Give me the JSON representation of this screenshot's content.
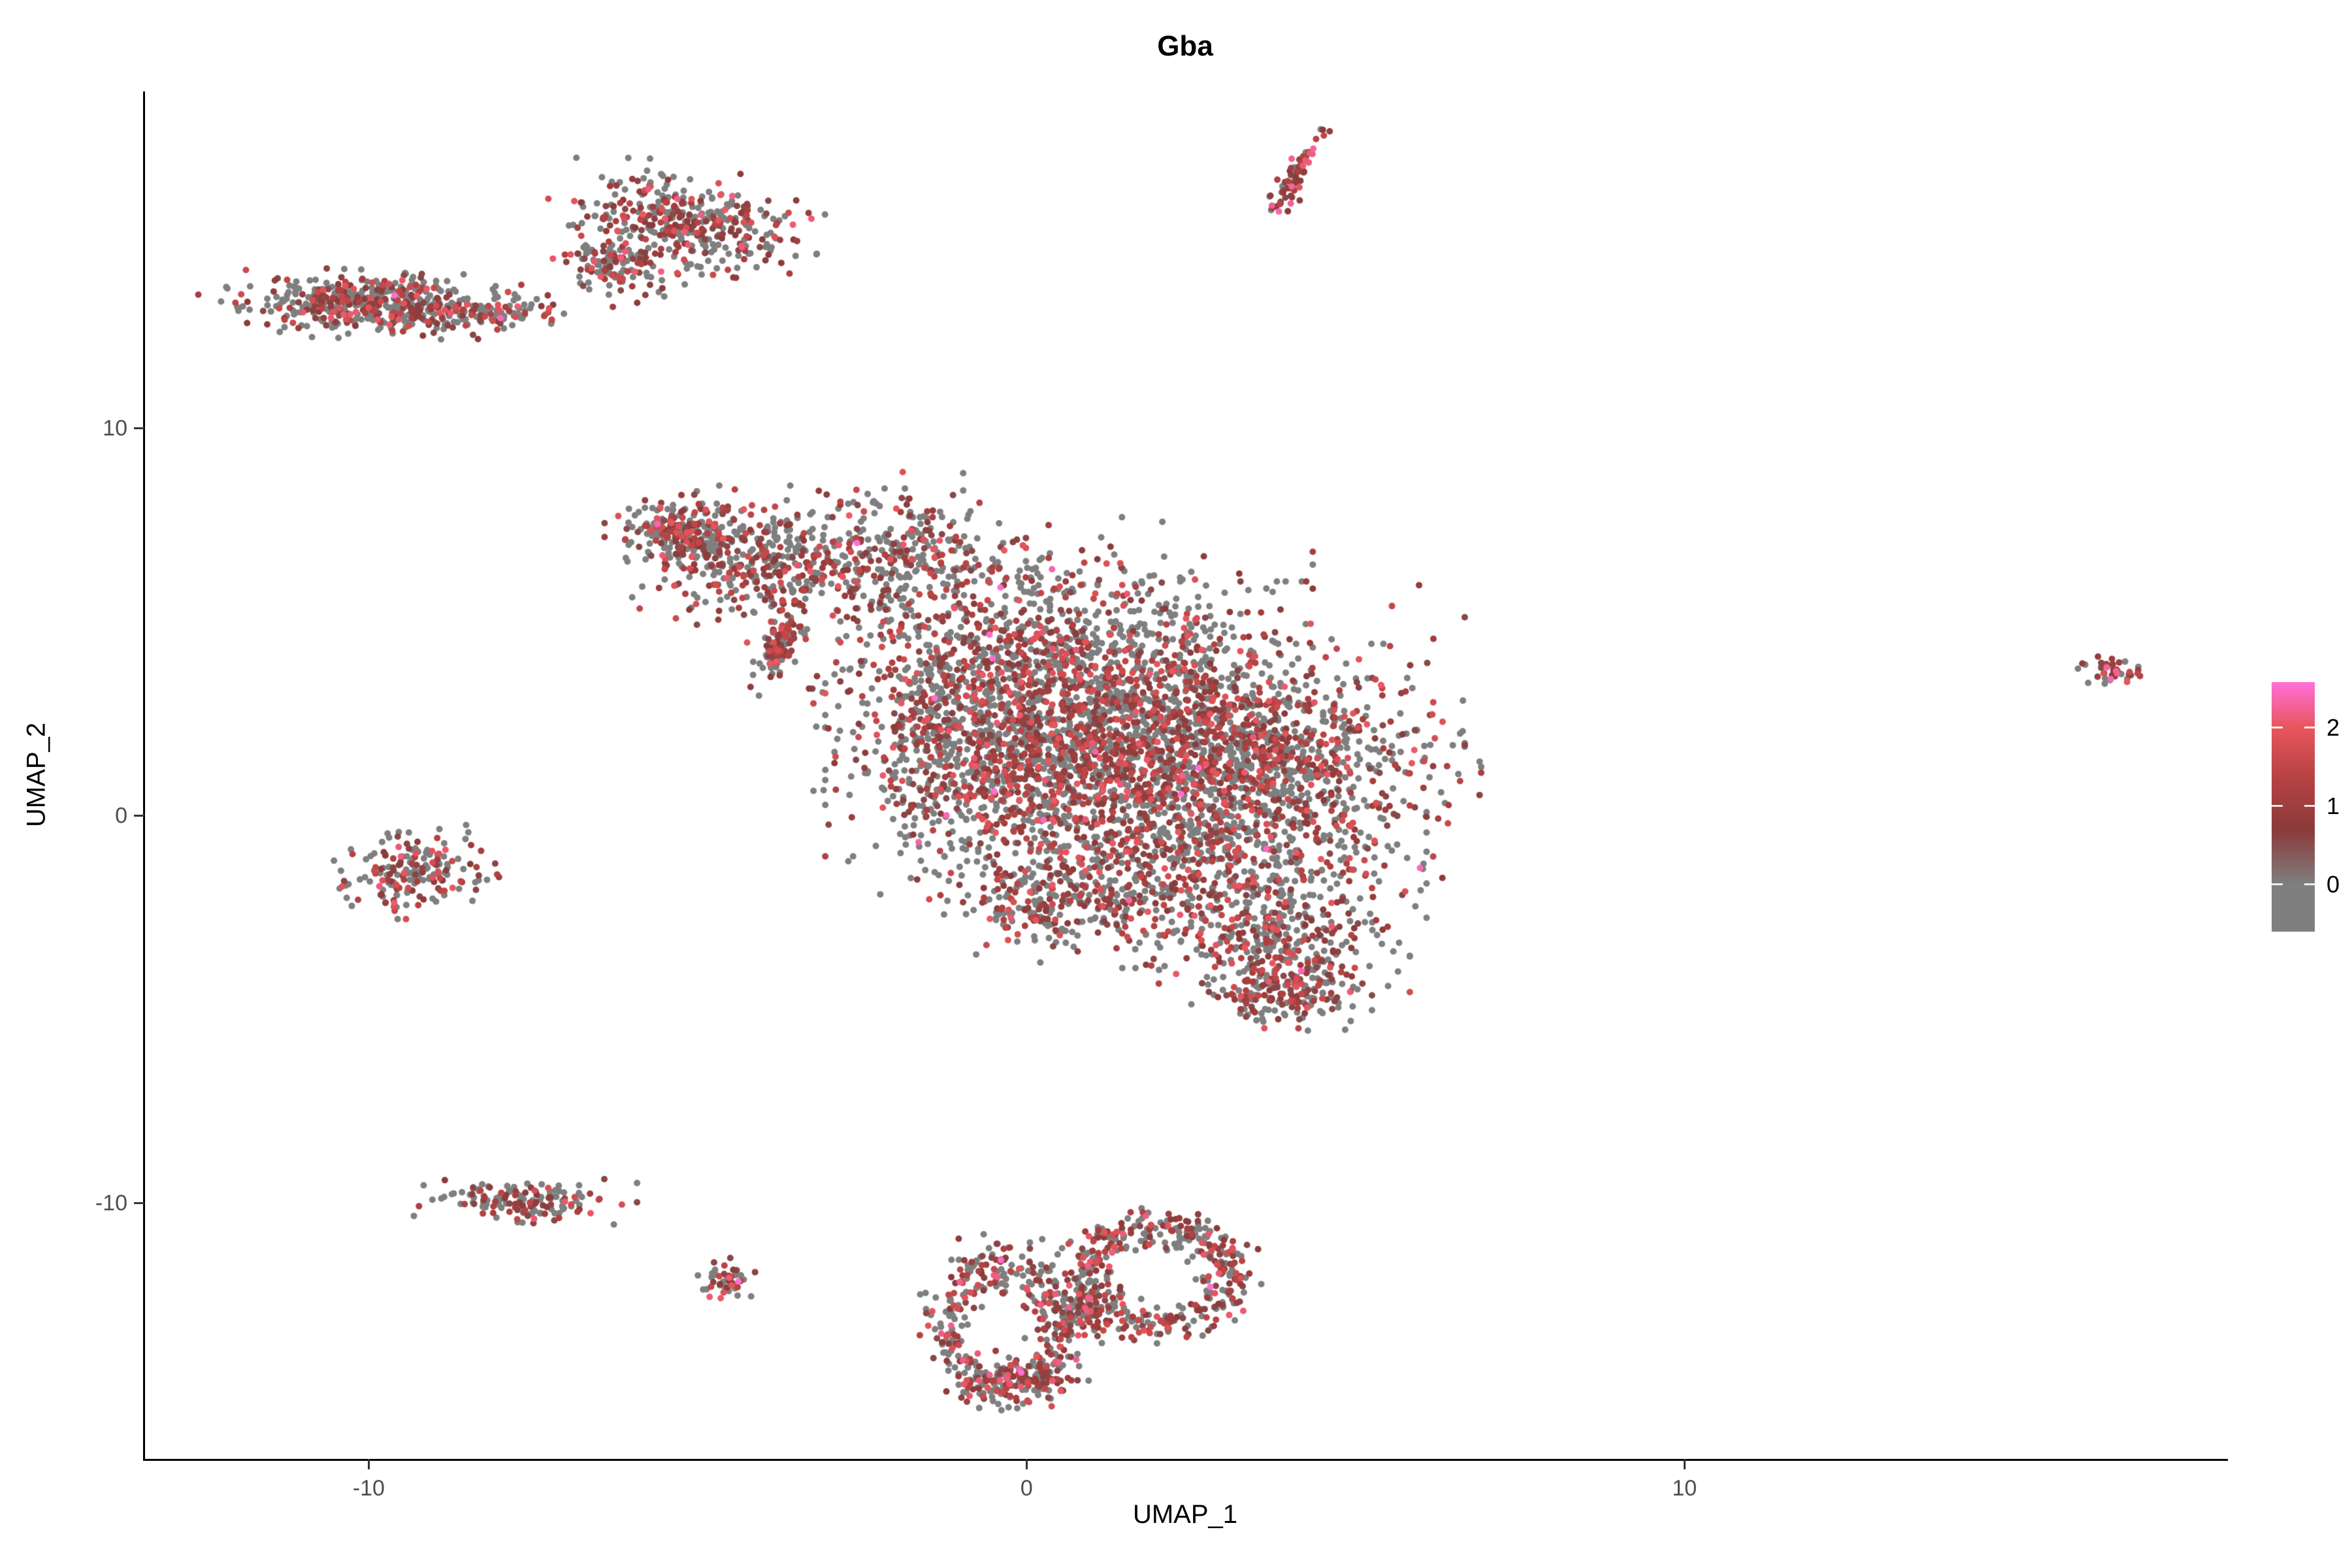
{
  "title": "Gba",
  "axes": {
    "x": {
      "label": "UMAP_1",
      "ticks": [
        {
          "value": -10,
          "label": "-10"
        },
        {
          "value": 0,
          "label": "0"
        },
        {
          "value": 10,
          "label": "10"
        }
      ]
    },
    "y": {
      "label": "UMAP_2",
      "ticks": [
        {
          "value": 10,
          "label": "10"
        },
        {
          "value": 0,
          "label": "0"
        },
        {
          "value": -10,
          "label": "-10"
        }
      ]
    }
  },
  "legend": {
    "range": [
      -0.6,
      2.58
    ],
    "ticks": [
      {
        "value": 2,
        "label": "2"
      },
      {
        "value": 1,
        "label": "1"
      },
      {
        "value": 0,
        "label": "0"
      }
    ]
  },
  "chart_data": {
    "type": "scatter",
    "title": "Gba",
    "xlabel": "UMAP_1",
    "ylabel": "UMAP_2",
    "xlim": [
      -13.41,
      18.23
    ],
    "ylim": [
      -16.6,
      18.7
    ],
    "grid": false,
    "legend_position": "right",
    "color_encoding": "Gba expression level (grey = 0, dark red = 1, red/pink = 2+)",
    "point_radius_px": 5,
    "colormap": [
      {
        "v": 0.0,
        "c": "#7F7F7F"
      },
      {
        "v": 0.7,
        "c": "#8B3A3A"
      },
      {
        "v": 1.4,
        "c": "#B94343"
      },
      {
        "v": 2.0,
        "c": "#E8565E"
      },
      {
        "v": 2.6,
        "c": "#FF70D8"
      }
    ],
    "clusters": [
      {
        "name": "topleft-band",
        "type": "gauss",
        "cx": -9.9,
        "cy": 13.2,
        "sx": 1.0,
        "sy": 0.33,
        "rot": -3,
        "n": 520,
        "expr_frac": 0.38,
        "expr_scale": 1.0
      },
      {
        "name": "topleft-band-tail",
        "type": "gauss",
        "cx": -8.2,
        "cy": 12.95,
        "sx": 0.45,
        "sy": 0.18,
        "rot": 0,
        "n": 60,
        "expr_frac": 0.3,
        "expr_scale": 1.0
      },
      {
        "name": "top-blob",
        "type": "gauss",
        "cx": -5.2,
        "cy": 15.3,
        "sx": 0.8,
        "sy": 0.55,
        "rot": -20,
        "n": 380,
        "expr_frac": 0.45,
        "expr_scale": 1.1
      },
      {
        "name": "top-blob-tail",
        "type": "gauss",
        "cx": -6.3,
        "cy": 14.2,
        "sx": 0.28,
        "sy": 0.4,
        "rot": 30,
        "n": 120,
        "expr_frac": 0.45,
        "expr_scale": 1.1
      },
      {
        "name": "top-streak",
        "type": "gauss",
        "cx": 4.1,
        "cy": 16.55,
        "sx": 0.09,
        "sy": 0.55,
        "rot": -17,
        "n": 70,
        "expr_frac": 0.75,
        "expr_scale": 1.2
      },
      {
        "name": "far-right",
        "type": "gauss",
        "cx": 16.5,
        "cy": 3.7,
        "sx": 0.22,
        "sy": 0.18,
        "rot": 0,
        "n": 42,
        "expr_frac": 0.75,
        "expr_scale": 1.3
      },
      {
        "name": "left-small",
        "type": "gauss",
        "cx": -9.3,
        "cy": -1.45,
        "sx": 0.5,
        "sy": 0.45,
        "rot": 0,
        "n": 190,
        "expr_frac": 0.4,
        "expr_scale": 1.1
      },
      {
        "name": "left-low-band",
        "type": "gauss",
        "cx": -7.6,
        "cy": -9.95,
        "sx": 0.62,
        "sy": 0.25,
        "rot": -5,
        "n": 150,
        "expr_frac": 0.45,
        "expr_scale": 1.0
      },
      {
        "name": "small-dot",
        "type": "gauss",
        "cx": -4.6,
        "cy": -12.0,
        "sx": 0.22,
        "sy": 0.25,
        "rot": 0,
        "n": 48,
        "expr_frac": 0.55,
        "expr_scale": 1.1
      },
      {
        "name": "main-arm-tip",
        "type": "gauss",
        "cx": -5.2,
        "cy": 7.3,
        "sx": 0.45,
        "sy": 0.4,
        "rot": 0,
        "n": 240,
        "expr_frac": 0.45,
        "expr_scale": 1.0
      },
      {
        "name": "main-arm",
        "type": "gauss",
        "cx": -3.9,
        "cy": 6.5,
        "sx": 0.8,
        "sy": 0.75,
        "rot": 0,
        "n": 380,
        "expr_frac": 0.45,
        "expr_scale": 1.0
      },
      {
        "name": "main-arm-upper",
        "type": "gauss",
        "cx": -1.9,
        "cy": 6.8,
        "sx": 0.7,
        "sy": 0.9,
        "rot": 0,
        "n": 260,
        "expr_frac": 0.4,
        "expr_scale": 1.0
      },
      {
        "name": "main-streak",
        "type": "gauss",
        "cx": -3.75,
        "cy": 4.35,
        "sx": 0.12,
        "sy": 0.5,
        "rot": -15,
        "n": 110,
        "expr_frac": 0.5,
        "expr_scale": 1.0
      },
      {
        "name": "main-core-a",
        "type": "gauss",
        "cx": 0.3,
        "cy": 4.2,
        "sx": 1.5,
        "sy": 1.3,
        "rot": 0,
        "n": 900,
        "expr_frac": 0.45,
        "expr_scale": 1.0
      },
      {
        "name": "main-core-b",
        "type": "gauss",
        "cx": 1.8,
        "cy": 2.0,
        "sx": 1.8,
        "sy": 1.5,
        "rot": 0,
        "n": 1500,
        "expr_frac": 0.45,
        "expr_scale": 1.0
      },
      {
        "name": "main-core-right",
        "type": "gauss",
        "cx": 3.4,
        "cy": 1.2,
        "sx": 1.3,
        "sy": 1.2,
        "rot": 0,
        "n": 800,
        "expr_frac": 0.45,
        "expr_scale": 1.0
      },
      {
        "name": "main-left-fill",
        "type": "gauss",
        "cx": 0.0,
        "cy": 1.0,
        "sx": 1.2,
        "sy": 1.2,
        "rot": 0,
        "n": 600,
        "expr_frac": 0.42,
        "expr_scale": 1.0
      },
      {
        "name": "main-left-edge",
        "type": "gauss",
        "cx": -1.3,
        "cy": 2.2,
        "sx": 0.6,
        "sy": 1.2,
        "rot": 0,
        "n": 200,
        "expr_frac": 0.4,
        "expr_scale": 1.0
      },
      {
        "name": "main-lower",
        "type": "gauss",
        "cx": 2.3,
        "cy": -1.5,
        "sx": 1.4,
        "sy": 0.9,
        "rot": 0,
        "n": 550,
        "expr_frac": 0.45,
        "expr_scale": 1.0
      },
      {
        "name": "main-left-spur",
        "type": "gauss",
        "cx": 0.2,
        "cy": -2.3,
        "sx": 0.65,
        "sy": 0.55,
        "rot": 0,
        "n": 170,
        "expr_frac": 0.42,
        "expr_scale": 1.0
      },
      {
        "name": "main-lower-right",
        "type": "gauss",
        "cx": 3.8,
        "cy": -3.3,
        "sx": 0.75,
        "sy": 0.7,
        "rot": 0,
        "n": 320,
        "expr_frac": 0.48,
        "expr_scale": 1.0
      },
      {
        "name": "main-tip",
        "type": "gauss",
        "cx": 3.9,
        "cy": -4.6,
        "sx": 0.5,
        "sy": 0.35,
        "rot": 0,
        "n": 160,
        "expr_frac": 0.5,
        "expr_scale": 1.0
      },
      {
        "name": "bottom-left-ring",
        "type": "ring",
        "cx": -0.35,
        "cy": -13.2,
        "r": 0.9,
        "thick": 0.2,
        "vscale": 1.8,
        "n": 380,
        "expr_frac": 0.5,
        "expr_scale": 1.1
      },
      {
        "name": "bottom-right-ring",
        "type": "ring",
        "cx": 2.0,
        "cy": -11.9,
        "r": 1.1,
        "thick": 0.2,
        "vscale": 1.15,
        "n": 400,
        "expr_frac": 0.5,
        "expr_scale": 1.1
      },
      {
        "name": "bottom-bridge",
        "type": "gauss",
        "cx": 0.8,
        "cy": -12.8,
        "sx": 0.3,
        "sy": 0.3,
        "rot": 0,
        "n": 80,
        "expr_frac": 0.5,
        "expr_scale": 1.1
      },
      {
        "name": "bottom-tail",
        "type": "gauss",
        "cx": -0.1,
        "cy": -14.5,
        "sx": 0.4,
        "sy": 0.22,
        "rot": 0,
        "n": 90,
        "expr_frac": 0.5,
        "expr_scale": 1.2
      },
      {
        "name": "bottom-outliers",
        "type": "gauss",
        "cx": 1.4,
        "cy": -10.9,
        "sx": 0.5,
        "sy": 0.3,
        "rot": 0,
        "n": 16,
        "expr_frac": 0.3,
        "expr_scale": 1.0
      }
    ]
  }
}
